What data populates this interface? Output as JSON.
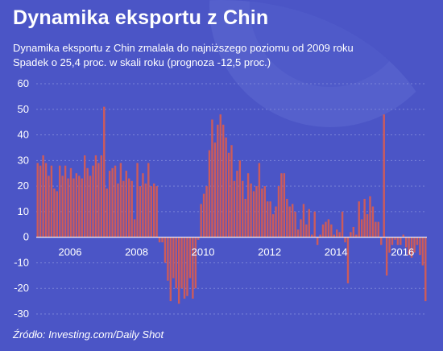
{
  "title": "Dynamika eksportu z Chin",
  "subtitle_lines": [
    "Dynamika eksportu z Chin zmalała do najniższego poziomu od 2009 roku",
    "Spadek o 25,4 proc. w skali roku (prognoza -12,5 proc.)"
  ],
  "source": "Źródło: Investing.com/Daily Shot",
  "colors": {
    "background": "#4b55c6",
    "bar": "#cc5b5b",
    "grid": "#7a83d8",
    "text": "#ffffff"
  },
  "chart_data": {
    "type": "bar",
    "ylim": [
      -30,
      60
    ],
    "y_ticks": [
      -30,
      -20,
      -10,
      0,
      10,
      20,
      30,
      40,
      50,
      60
    ],
    "x_year_labels": [
      "2006",
      "2008",
      "2010",
      "2012",
      "2014",
      "2016"
    ],
    "x_year_positions": [
      6,
      30,
      54,
      78,
      102,
      126
    ],
    "grid": true,
    "series": [
      {
        "values": [
          29,
          28,
          32,
          29,
          24,
          28,
          19,
          18,
          28,
          24,
          28,
          23,
          27,
          23,
          25,
          24,
          23,
          32,
          27,
          24,
          28,
          32,
          29,
          32,
          51,
          19,
          26,
          27,
          28,
          21,
          29,
          22,
          26,
          23,
          22,
          7,
          29,
          20,
          25,
          21,
          29,
          20,
          21,
          20,
          -2,
          -2,
          -10,
          -17,
          -25,
          -16,
          -20,
          -26,
          -20,
          -24,
          -23,
          -16,
          -24,
          -20,
          -1,
          13,
          17,
          20,
          34,
          46,
          37,
          44,
          48,
          44,
          39,
          33,
          36,
          22,
          26,
          30,
          22,
          15,
          25,
          21,
          18,
          20,
          29,
          19,
          20,
          14,
          14,
          9,
          12,
          20,
          25,
          25,
          15,
          12,
          13,
          10,
          3,
          7,
          13,
          5,
          11,
          1,
          10,
          -3,
          1,
          5,
          6,
          7,
          5,
          1,
          3,
          2,
          10,
          -2,
          -18,
          2,
          4,
          1,
          14,
          7,
          15,
          9,
          16,
          12,
          6,
          6,
          -3,
          48,
          -15,
          -6,
          -3,
          -1,
          -3,
          -3,
          1,
          -4,
          -7,
          -8,
          -6,
          -3,
          -7,
          -11,
          -25
        ]
      }
    ]
  }
}
